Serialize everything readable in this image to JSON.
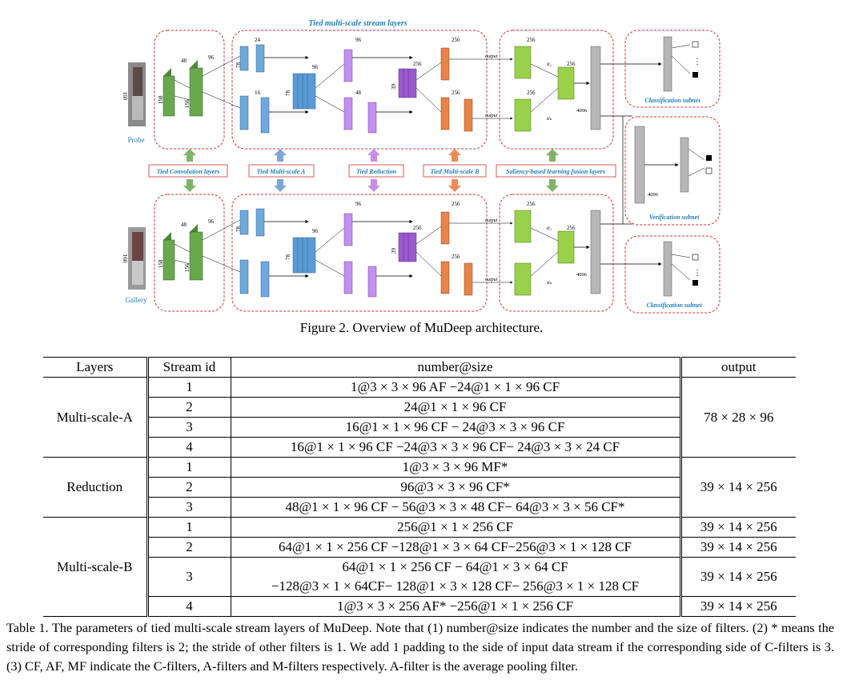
{
  "figure": {
    "title": "Tied multi-scale stream layers",
    "probe_label": "Probe",
    "gallery_label": "Gallery",
    "bridge_labels": [
      "Tied Convolution layers",
      "Tied Multi-scale A",
      "Tied Reduction",
      "Tied Multi-scale B",
      "Saliency-based learning fusion layers"
    ],
    "classification_label": "Classification subnet",
    "verification_label": "Verification subnet",
    "caption": "Figure 2. Overview of MuDeep architecture.",
    "dims": {
      "n160": "160",
      "n158": "158",
      "n156": "156",
      "n48": "48",
      "n96": "96",
      "n24": "24",
      "n16": "16",
      "n78": "78",
      "n39": "39",
      "n256": "256",
      "n4096": "4096",
      "output": "output",
      "alpha1": "α₁",
      "alphan": "αₙ"
    },
    "colors": {
      "green": "#6aa84f",
      "blue": "#6fa8dc",
      "purple": "#c38ff0",
      "violet": "#9b59d0",
      "orange": "#e8834a",
      "lime": "#9ad14b",
      "gray": "#b7b7b7",
      "dash": "#cc3333",
      "label_blue": "#1e7fb8"
    }
  },
  "table": {
    "headers": [
      "Layers",
      "Stream id",
      "number@size",
      "output"
    ],
    "groups": [
      {
        "layer": "Multi-scale-A",
        "rows": [
          {
            "id": "1",
            "spec": "1@3 × 3 × 96 AF −24@1 × 1 × 96 CF"
          },
          {
            "id": "2",
            "spec": "24@1 × 1 × 96 CF"
          },
          {
            "id": "3",
            "spec": "16@1 × 1 × 96 CF − 24@3 × 3 × 96 CF"
          },
          {
            "id": "4",
            "spec": "16@1 × 1 × 96 CF −24@3 × 3 × 96 CF− 24@3 × 3 × 24 CF"
          }
        ],
        "output": "78 × 28 × 96"
      },
      {
        "layer": "Reduction",
        "rows": [
          {
            "id": "1",
            "spec": "1@3 × 3 × 96 MF*"
          },
          {
            "id": "2",
            "spec": "96@3 × 3 × 96 CF*"
          },
          {
            "id": "3",
            "spec": "48@1 × 1 × 96 CF − 56@3 × 3 × 48 CF− 64@3 × 3 × 56 CF*"
          }
        ],
        "output": "39 × 14 × 256"
      },
      {
        "layer": "Multi-scale-B",
        "rows": [
          {
            "id": "1",
            "spec": "256@1 × 1 × 256 CF",
            "output": "39 × 14 × 256"
          },
          {
            "id": "2",
            "spec": "64@1 × 1 × 256 CF −128@1 × 3 × 64 CF−256@3 × 1 × 128 CF",
            "output": "39 × 14 × 256"
          },
          {
            "id": "3",
            "spec": "64@1 × 1 × 256 CF − 64@1 × 3 × 64 CF",
            "spec2": "−128@3 × 1 × 64CF− 128@1 × 3 × 128 CF− 256@3 × 1 × 128 CF",
            "output": "39 × 14 × 256"
          },
          {
            "id": "4",
            "spec": "1@3 × 3 × 256 AF* −256@1 × 1 × 256 CF",
            "output": "39 × 14 × 256"
          }
        ]
      }
    ],
    "caption": "Table 1. The parameters of tied multi-scale stream layers of MuDeep. Note that (1) number@size indicates the number and the size of filters. (2) * means the stride of corresponding filters is 2; the stride of other filters is 1. We add 1 padding to the side of input data stream if the corresponding side of C-filters is 3. (3) CF, AF, MF indicate the C-filters, A-filters and M-filters respectively. A-filter is the average pooling filter."
  }
}
